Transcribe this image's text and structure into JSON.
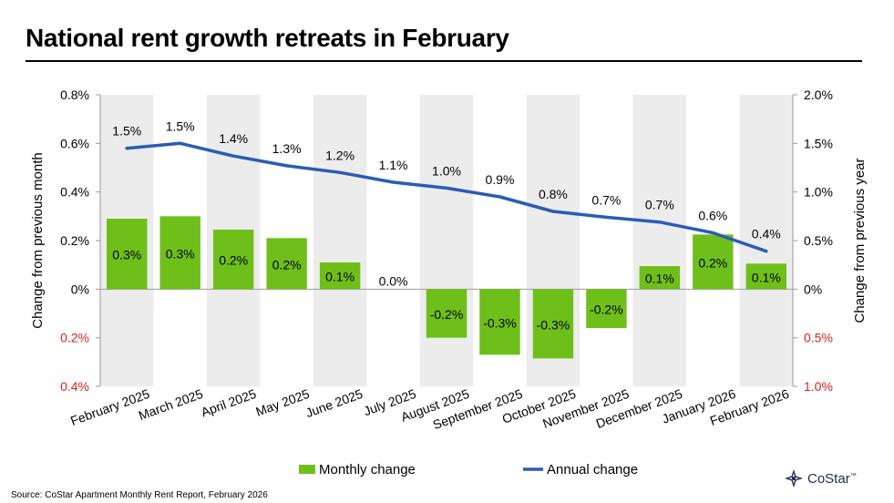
{
  "title": "National rent growth retreats in February",
  "source": "Source: CoStar Apartment Monthly Rent Report, February 2026",
  "logo_text": "CoStar",
  "logo_tm": "™",
  "colors": {
    "bar": "#6fbf1b",
    "line": "#2c5bb5",
    "band": "#ececec",
    "negative_tick": "#e0201c"
  },
  "chart_data": {
    "type": "bar",
    "categories": [
      "February 2025",
      "March 2025",
      "April 2025",
      "May 2025",
      "June 2025",
      "July 2025",
      "August 2025",
      "September 2025",
      "October 2025",
      "November 2025",
      "December 2025",
      "January 2026",
      "February 2026"
    ],
    "series": [
      {
        "name": "Monthly change",
        "type": "bar",
        "axis": "left",
        "values": [
          0.29,
          0.3,
          0.245,
          0.21,
          0.11,
          0.0,
          -0.2,
          -0.27,
          -0.285,
          -0.16,
          0.095,
          0.225,
          0.105
        ],
        "labels": [
          "0.3%",
          "0.3%",
          "0.2%",
          "0.2%",
          "0.1%",
          "0.0%",
          "-0.2%",
          "-0.3%",
          "-0.3%",
          "-0.2%",
          "0.1%",
          "0.2%",
          "0.1%"
        ]
      },
      {
        "name": "Annual change",
        "type": "line",
        "axis": "right",
        "values": [
          1.45,
          1.5,
          1.37,
          1.27,
          1.2,
          1.1,
          1.04,
          0.95,
          0.8,
          0.74,
          0.69,
          0.58,
          0.39
        ],
        "labels": [
          "1.5%",
          "1.5%",
          "1.4%",
          "1.3%",
          "1.2%",
          "1.1%",
          "1.0%",
          "0.9%",
          "0.8%",
          "0.7%",
          "0.7%",
          "0.6%",
          "0.4%"
        ]
      }
    ],
    "ylabel": "Change from previous month",
    "y2label": "Change from previous year",
    "ylim": [
      -0.4,
      0.8
    ],
    "y2lim": [
      -1.0,
      2.0
    ],
    "yticks": [
      {
        "value": 0.8,
        "label": "0.8%",
        "negative": false
      },
      {
        "value": 0.6,
        "label": "0.6%",
        "negative": false
      },
      {
        "value": 0.4,
        "label": "0.4%",
        "negative": false
      },
      {
        "value": 0.2,
        "label": "0.2%",
        "negative": false
      },
      {
        "value": 0.0,
        "label": "0%",
        "negative": false
      },
      {
        "value": -0.2,
        "label": "0.2%",
        "negative": true
      },
      {
        "value": -0.4,
        "label": "0.4%",
        "negative": true
      }
    ],
    "y2ticks": [
      {
        "value": 2.0,
        "label": "2.0%",
        "negative": false
      },
      {
        "value": 1.5,
        "label": "1.5%",
        "negative": false
      },
      {
        "value": 1.0,
        "label": "1.0%",
        "negative": false
      },
      {
        "value": 0.5,
        "label": "0.5%",
        "negative": false
      },
      {
        "value": 0.0,
        "label": "0%",
        "negative": false
      },
      {
        "value": -0.5,
        "label": "0.5%",
        "negative": true
      },
      {
        "value": -1.0,
        "label": "1.0%",
        "negative": true
      }
    ],
    "alternating_bands": true,
    "legend": [
      {
        "name": "Monthly change",
        "kind": "bar"
      },
      {
        "name": "Annual change",
        "kind": "line"
      }
    ],
    "legend_position": "bottom"
  }
}
